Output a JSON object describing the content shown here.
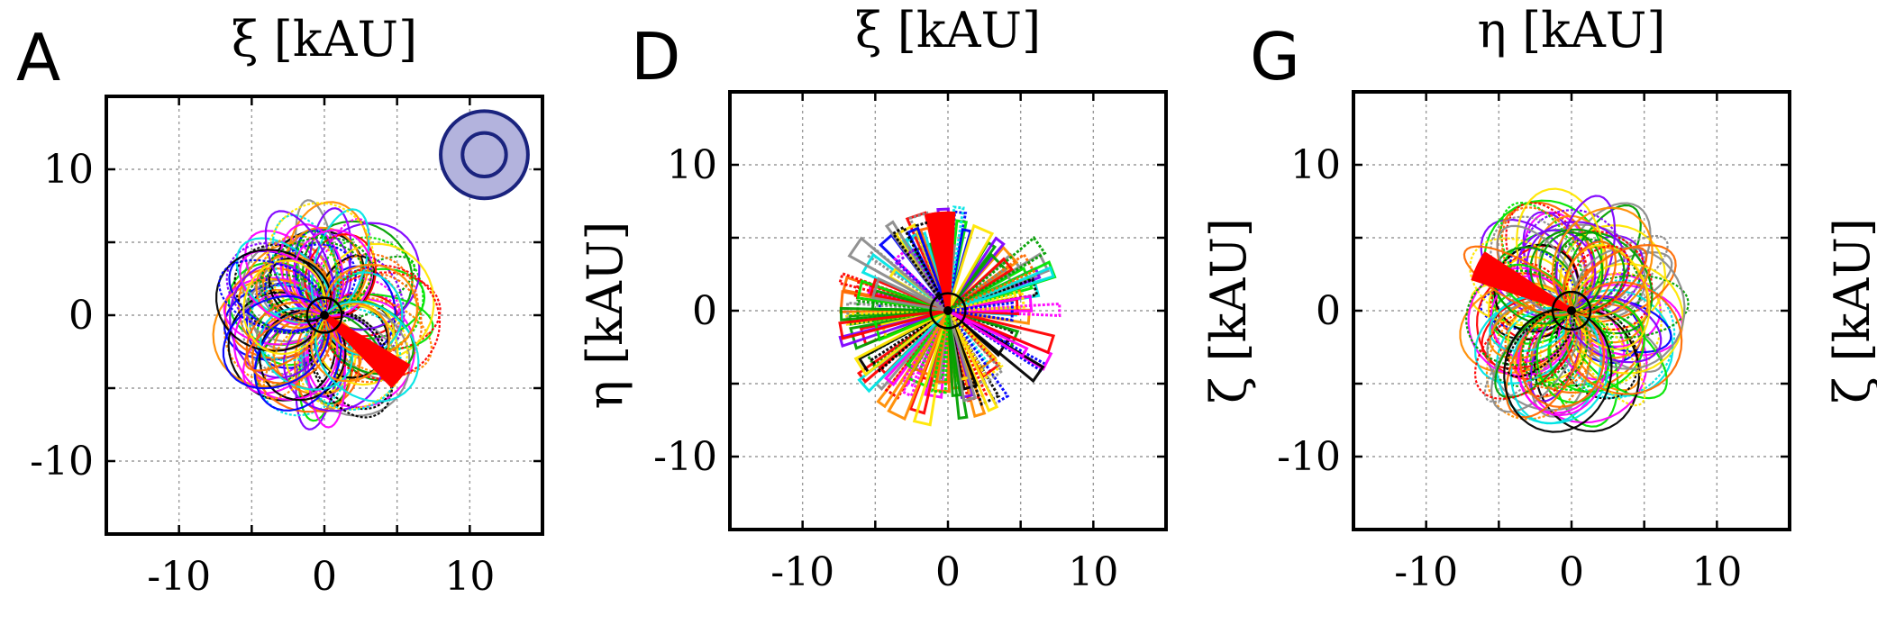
{
  "chart_data": [
    {
      "type": "line",
      "panel_label": "A",
      "top_title": "ξ [kAU]",
      "right_label": "η [kAU]",
      "xlim": [
        -15,
        15
      ],
      "ylim": [
        -15,
        15
      ],
      "xticks": [
        -10,
        0,
        10
      ],
      "yticks": [
        -10,
        0,
        10
      ],
      "xtick_labels": [
        "-10",
        "0",
        "10"
      ],
      "ytick_labels": [
        "-10",
        "0",
        "10"
      ],
      "grid": true,
      "cloud_radius": 8,
      "pattern": "loops",
      "inner_circle_radius": 1.2,
      "inset_symbol": {
        "center": [
          11,
          11
        ],
        "outer_radius": 3,
        "inner_radius": 1.5,
        "fill": "#b3b3dd",
        "stroke": "#1a237e"
      },
      "highlight_color": "#ff0000",
      "highlight_angle_deg": -38,
      "seed": 11
    },
    {
      "type": "line",
      "panel_label": "D",
      "top_title": "ξ [kAU]",
      "right_label": "ζ [kAU]",
      "xlim": [
        -15,
        15
      ],
      "ylim": [
        -15,
        15
      ],
      "xticks": [
        -10,
        0,
        10
      ],
      "yticks": [
        -10,
        0,
        10
      ],
      "xtick_labels": [
        "-10",
        "0",
        "10"
      ],
      "ytick_labels": [
        "-10",
        "0",
        "10"
      ],
      "grid": true,
      "cloud_radius": 8,
      "pattern": "rays",
      "inner_circle_radius": 1.2,
      "highlight_color": "#ff0000",
      "highlight_angle_deg": 95,
      "seed": 23
    },
    {
      "type": "line",
      "panel_label": "G",
      "top_title": "η [kAU]",
      "right_label": "ζ [kAU]",
      "xlim": [
        -15,
        15
      ],
      "ylim": [
        -15,
        15
      ],
      "xticks": [
        -10,
        0,
        10
      ],
      "yticks": [
        -10,
        0,
        10
      ],
      "xtick_labels": [
        "-10",
        "0",
        "10"
      ],
      "ytick_labels": [
        "-10",
        "0",
        "10"
      ],
      "grid": true,
      "cloud_radius": 8.5,
      "pattern": "loops",
      "inner_circle_radius": 1.3,
      "highlight_color": "#ff0000",
      "highlight_angle_deg": 155,
      "seed": 37
    }
  ],
  "colors": [
    "#ff0000",
    "#00e600",
    "#0000ff",
    "#ff00ff",
    "#00e5e5",
    "#ff6a00",
    "#000000",
    "#8c8c8c",
    "#ffe600",
    "#7f00ff",
    "#00a000",
    "#ff8c00"
  ]
}
